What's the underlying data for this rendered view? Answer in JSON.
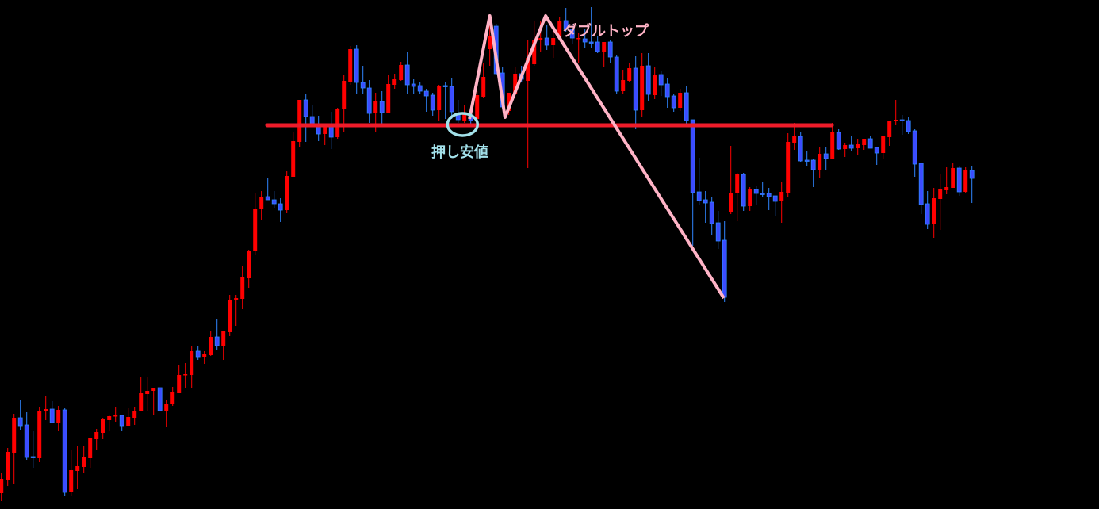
{
  "chart_data": {
    "type": "candlestick",
    "title": "",
    "xlabel": "",
    "ylabel": "",
    "ylim": [
      358,
      1000
    ],
    "grid": false,
    "ohlc_order": [
      "open",
      "high",
      "low",
      "close"
    ],
    "candles": [
      [
        378,
        403,
        368,
        396
      ],
      [
        395,
        435,
        387,
        430
      ],
      [
        429,
        478,
        390,
        473
      ],
      [
        473,
        495,
        458,
        463
      ],
      [
        464,
        480,
        420,
        423
      ],
      [
        424,
        457,
        410,
        423
      ],
      [
        422,
        487,
        417,
        482
      ],
      [
        481,
        501,
        470,
        484
      ],
      [
        484,
        494,
        467,
        467
      ],
      [
        467,
        488,
        456,
        483
      ],
      [
        483,
        486,
        375,
        379
      ],
      [
        379,
        432,
        374,
        407
      ],
      [
        406,
        438,
        383,
        412
      ],
      [
        411,
        437,
        404,
        423
      ],
      [
        422,
        447,
        410,
        447
      ],
      [
        446,
        459,
        432,
        455
      ],
      [
        454,
        473,
        446,
        471
      ],
      [
        470,
        476,
        457,
        475
      ],
      [
        475,
        487,
        468,
        476
      ],
      [
        476,
        477,
        457,
        463
      ],
      [
        463,
        485,
        463,
        474
      ],
      [
        473,
        487,
        464,
        482
      ],
      [
        481,
        525,
        481,
        504
      ],
      [
        503,
        525,
        482,
        507
      ],
      [
        507,
        511,
        477,
        511
      ],
      [
        511,
        511,
        482,
        482
      ],
      [
        481,
        495,
        461,
        491
      ],
      [
        490,
        512,
        488,
        505
      ],
      [
        504,
        540,
        504,
        527
      ],
      [
        527,
        542,
        511,
        528
      ],
      [
        527,
        563,
        510,
        557
      ],
      [
        557,
        564,
        546,
        550
      ],
      [
        550,
        557,
        541,
        553
      ],
      [
        552,
        583,
        551,
        575
      ],
      [
        575,
        598,
        559,
        564
      ],
      [
        563,
        582,
        546,
        582
      ],
      [
        581,
        628,
        576,
        622
      ],
      [
        622,
        628,
        589,
        624
      ],
      [
        623,
        664,
        610,
        650
      ],
      [
        649,
        685,
        637,
        684
      ],
      [
        683,
        756,
        679,
        737
      ],
      [
        737,
        759,
        722,
        752
      ],
      [
        752,
        776,
        748,
        748
      ],
      [
        748,
        759,
        738,
        743
      ],
      [
        743,
        750,
        720,
        735
      ],
      [
        735,
        784,
        731,
        778
      ],
      [
        777,
        833,
        777,
        822
      ],
      [
        821,
        874,
        815,
        874
      ],
      [
        874,
        881,
        821,
        853
      ],
      [
        853,
        867,
        840,
        840
      ],
      [
        840,
        854,
        822,
        831
      ],
      [
        831,
        843,
        817,
        840
      ],
      [
        840,
        859,
        812,
        827
      ],
      [
        827,
        864,
        825,
        863
      ],
      [
        863,
        905,
        833,
        898
      ],
      [
        897,
        942,
        893,
        938
      ],
      [
        938,
        943,
        882,
        896
      ],
      [
        896,
        917,
        881,
        889
      ],
      [
        889,
        899,
        845,
        857
      ],
      [
        857,
        883,
        833,
        872
      ],
      [
        872,
        885,
        844,
        858
      ],
      [
        857,
        905,
        857,
        894
      ],
      [
        893,
        907,
        888,
        900
      ],
      [
        899,
        922,
        898,
        918
      ],
      [
        918,
        934,
        881,
        893
      ],
      [
        894,
        900,
        881,
        891
      ],
      [
        892,
        897,
        882,
        885
      ],
      [
        885,
        888,
        859,
        879
      ],
      [
        880,
        883,
        854,
        861
      ],
      [
        861,
        893,
        848,
        892
      ],
      [
        892,
        897,
        850,
        891
      ],
      [
        891,
        901,
        850,
        859
      ],
      [
        855,
        874,
        845,
        849
      ],
      [
        848,
        868,
        845,
        857
      ],
      [
        854,
        860,
        844,
        848
      ],
      [
        850,
        885,
        848,
        880
      ],
      [
        878,
        920,
        876,
        903
      ],
      [
        938,
        972,
        917,
        955
      ],
      [
        967,
        970,
        905,
        907
      ],
      [
        908,
        915,
        862,
        865
      ],
      [
        860,
        883,
        855,
        883
      ],
      [
        882,
        915,
        880,
        907
      ],
      [
        907,
        917,
        897,
        900
      ],
      [
        898,
        950,
        788,
        927
      ],
      [
        919,
        973,
        917,
        950
      ],
      [
        950,
        973,
        935,
        952
      ],
      [
        952,
        968,
        937,
        943
      ],
      [
        943,
        962,
        927,
        952
      ],
      [
        952,
        978,
        950,
        974
      ],
      [
        974,
        990,
        960,
        963
      ],
      [
        963,
        970,
        945,
        952
      ],
      [
        951,
        958,
        920,
        952
      ],
      [
        951,
        963,
        939,
        947
      ],
      [
        947,
        991,
        940,
        946
      ],
      [
        947,
        955,
        933,
        935
      ],
      [
        935,
        947,
        915,
        947
      ],
      [
        947,
        949,
        920,
        928
      ],
      [
        928,
        931,
        882,
        885
      ],
      [
        885,
        912,
        882,
        899
      ],
      [
        898,
        920,
        896,
        914
      ],
      [
        914,
        929,
        837,
        861
      ],
      [
        861,
        933,
        852,
        917
      ],
      [
        917,
        933,
        873,
        881
      ],
      [
        880,
        915,
        875,
        906
      ],
      [
        906,
        910,
        879,
        893
      ],
      [
        894,
        901,
        864,
        878
      ],
      [
        879,
        882,
        859,
        864
      ],
      [
        864,
        888,
        860,
        883
      ],
      [
        883,
        892,
        843,
        848
      ],
      [
        849,
        849,
        690,
        757
      ],
      [
        758,
        801,
        741,
        747
      ],
      [
        748,
        759,
        719,
        744
      ],
      [
        745,
        751,
        704,
        718
      ],
      [
        719,
        734,
        686,
        696
      ],
      [
        697,
        721,
        619,
        625
      ],
      [
        732,
        816,
        730,
        757
      ],
      [
        756,
        782,
        721,
        780
      ],
      [
        780,
        782,
        734,
        740
      ],
      [
        740,
        764,
        734,
        761
      ],
      [
        761,
        765,
        742,
        756
      ],
      [
        756,
        771,
        751,
        755
      ],
      [
        756,
        763,
        735,
        752
      ],
      [
        753,
        753,
        728,
        746
      ],
      [
        746,
        771,
        719,
        758
      ],
      [
        757,
        832,
        752,
        821
      ],
      [
        820,
        845,
        811,
        828
      ],
      [
        828,
        833,
        796,
        797
      ],
      [
        798,
        809,
        790,
        797
      ],
      [
        798,
        799,
        764,
        786
      ],
      [
        786,
        814,
        776,
        806
      ],
      [
        806,
        814,
        786,
        800
      ],
      [
        800,
        845,
        799,
        833
      ],
      [
        833,
        837,
        811,
        812
      ],
      [
        812,
        820,
        802,
        817
      ],
      [
        817,
        829,
        809,
        813
      ],
      [
        813,
        825,
        805,
        818
      ],
      [
        817,
        825,
        811,
        825
      ],
      [
        825,
        829,
        813,
        813
      ],
      [
        814,
        814,
        792,
        807
      ],
      [
        807,
        828,
        799,
        828
      ],
      [
        827,
        848,
        816,
        848
      ],
      [
        847,
        874,
        842,
        849
      ],
      [
        849,
        855,
        830,
        848
      ],
      [
        848,
        853,
        831,
        834
      ],
      [
        835,
        837,
        777,
        793
      ],
      [
        794,
        794,
        730,
        742
      ],
      [
        743,
        759,
        711,
        717
      ],
      [
        717,
        763,
        700,
        750
      ],
      [
        749,
        780,
        710,
        761
      ],
      [
        760,
        789,
        755,
        764
      ],
      [
        763,
        794,
        763,
        788
      ],
      [
        788,
        790,
        753,
        758
      ],
      [
        758,
        789,
        757,
        785
      ],
      [
        785,
        791,
        744,
        775
      ]
    ],
    "colors": {
      "up_candle": "#ff0000",
      "down_candle": "#3c4cff",
      "down_outline": "#2f86ff",
      "background": "#000000"
    },
    "annotations": {
      "support_line": {
        "price": 842,
        "from_index": 42,
        "to_index": 131,
        "color": "#ee1c2a"
      },
      "double_top_zigzag": {
        "color": "#ffb3c6",
        "points": [
          [
            73.8,
            850
          ],
          [
            77,
            980
          ],
          [
            79.4,
            852
          ],
          [
            85.8,
            980
          ],
          [
            113.9,
            624
          ]
        ]
      },
      "pullback_circle": {
        "index": 72.7,
        "price": 843,
        "color": "#a3e1ea"
      },
      "pullback_low_label": {
        "text": "押し安値",
        "color": "#a3e1ea"
      },
      "double_top_label": {
        "text": "ダブルトップ",
        "color": "#ffb3c6"
      }
    }
  }
}
